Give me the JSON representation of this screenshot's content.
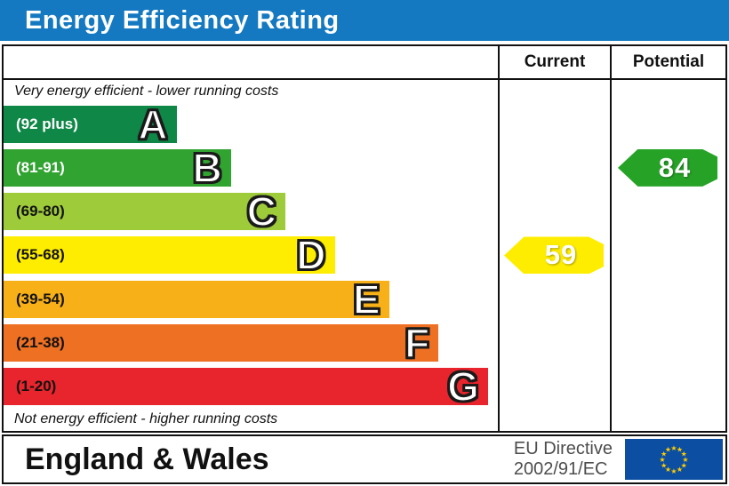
{
  "title": "Energy Efficiency Rating",
  "columns": {
    "current": "Current",
    "potential": "Potential"
  },
  "top_note": "Very energy efficient - lower running costs",
  "bottom_note": "Not energy efficient - higher running costs",
  "bands": [
    {
      "letter": "A",
      "range": "(92 plus)",
      "color": "#0e8747",
      "range_text_color": "#ffffff",
      "width_pct": 35
    },
    {
      "letter": "B",
      "range": "(81-91)",
      "color": "#31a331",
      "range_text_color": "#ffffff",
      "width_pct": 46
    },
    {
      "letter": "C",
      "range": "(69-80)",
      "color": "#9ecb3a",
      "range_text_color": "#111111",
      "width_pct": 57
    },
    {
      "letter": "D",
      "range": "(55-68)",
      "color": "#ffed00",
      "range_text_color": "#111111",
      "width_pct": 67
    },
    {
      "letter": "E",
      "range": "(39-54)",
      "color": "#f8b018",
      "range_text_color": "#111111",
      "width_pct": 78
    },
    {
      "letter": "F",
      "range": "(21-38)",
      "color": "#ee7023",
      "range_text_color": "#111111",
      "width_pct": 88
    },
    {
      "letter": "G",
      "range": "(1-20)",
      "color": "#e8242c",
      "range_text_color": "#111111",
      "width_pct": 98
    }
  ],
  "current": {
    "value": "59",
    "band_letter": "D",
    "band_index": 3,
    "color": "#ffed00"
  },
  "potential": {
    "value": "84",
    "band_letter": "B",
    "band_index": 1,
    "color": "#26a327"
  },
  "footer": {
    "region": "England & Wales",
    "directive_line1": "EU Directive",
    "directive_line2": "2002/91/EC"
  },
  "colors": {
    "title_bar": "#1479c0",
    "border": "#111111",
    "flag_blue": "#0b4ea2",
    "flag_star": "#ffcc00",
    "directive_text": "#4d4d4d"
  },
  "chart_data": {
    "type": "bar",
    "title": "Energy Efficiency Rating",
    "categories": [
      "A",
      "B",
      "C",
      "D",
      "E",
      "F",
      "G"
    ],
    "band_ranges": [
      "92 plus",
      "81-91",
      "69-80",
      "55-68",
      "39-54",
      "21-38",
      "1-20"
    ],
    "band_colors": [
      "#0e8747",
      "#31a331",
      "#9ecb3a",
      "#ffed00",
      "#f8b018",
      "#ee7023",
      "#e8242c"
    ],
    "bar_lengths_pct": [
      35,
      46,
      57,
      67,
      78,
      88,
      98
    ],
    "series": [
      {
        "name": "Current",
        "value": 59,
        "band": "D"
      },
      {
        "name": "Potential",
        "value": 84,
        "band": "B"
      }
    ],
    "scale": [
      1,
      100
    ],
    "top_annotation": "Very energy efficient - lower running costs",
    "bottom_annotation": "Not energy efficient - higher running costs",
    "region": "England & Wales",
    "directive": "EU Directive 2002/91/EC"
  }
}
